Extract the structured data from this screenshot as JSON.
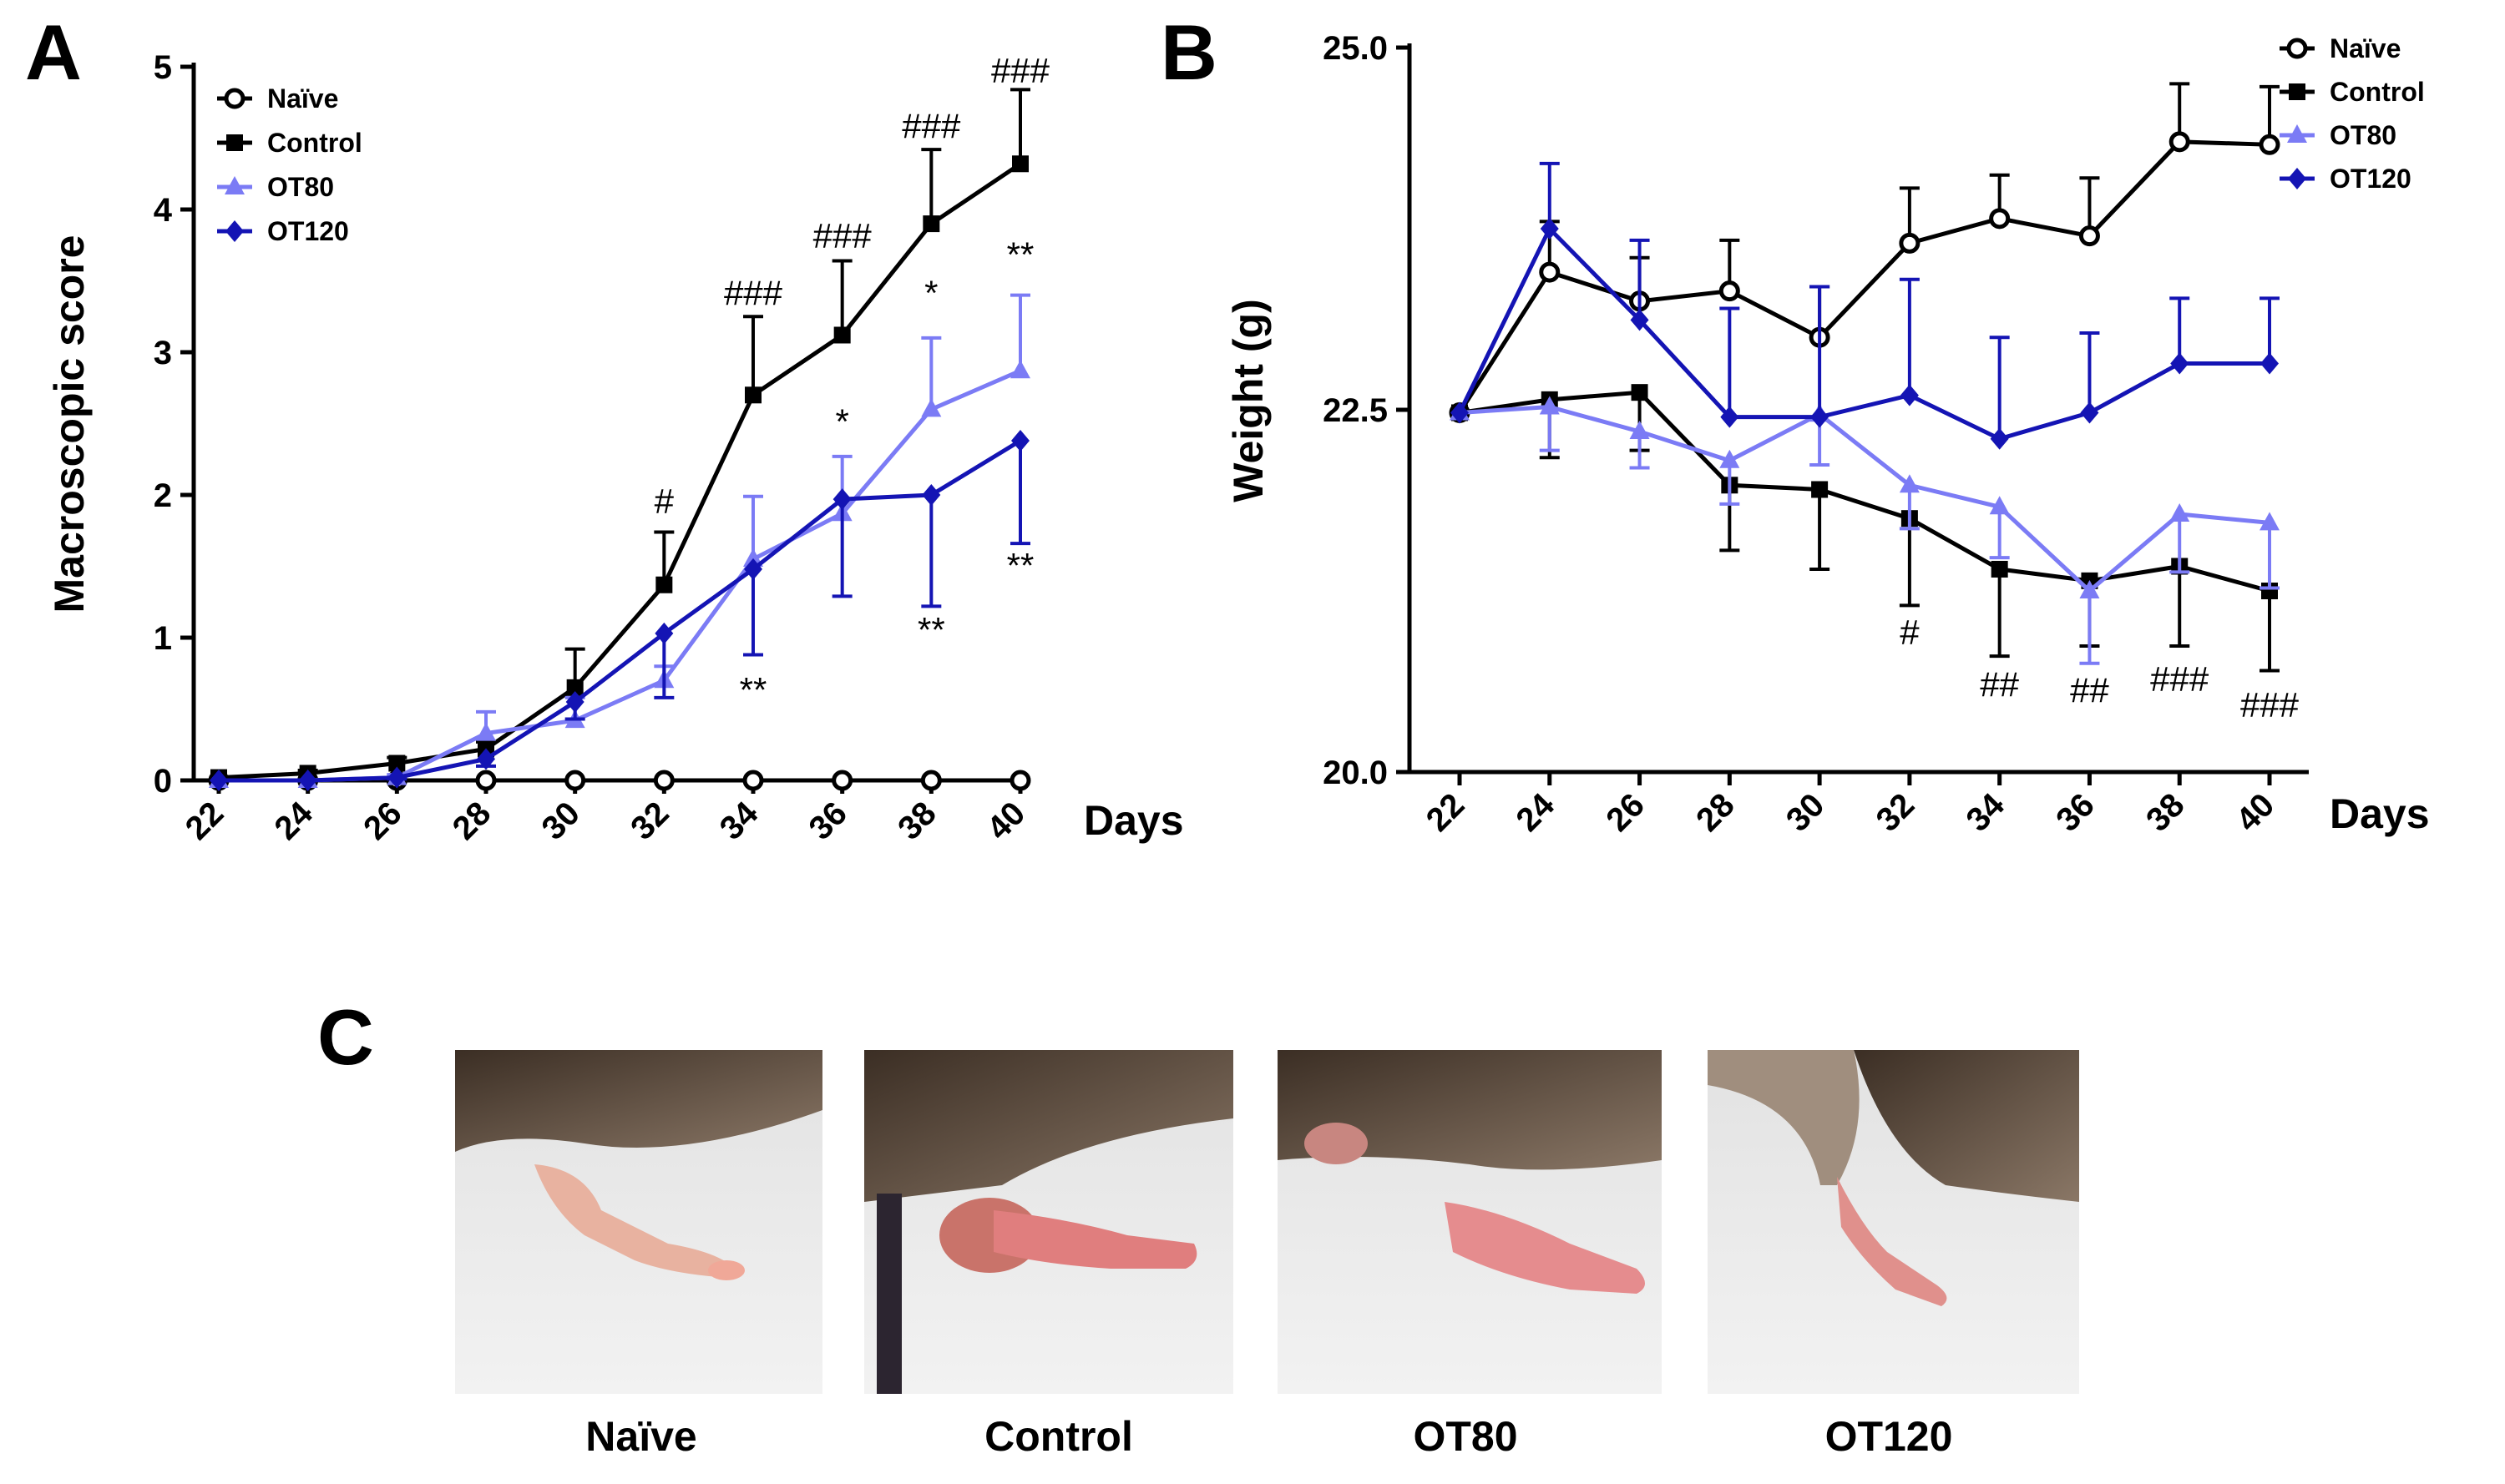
{
  "panels": {
    "a": "A",
    "b": "B",
    "c": "C"
  },
  "colors": {
    "naive": "#000000",
    "control": "#000000",
    "ot80": "#7b7bf5",
    "ot120": "#1414b4"
  },
  "chart_data": [
    {
      "id": "A",
      "type": "line",
      "ylabel": "Macroscopic  score",
      "xlabel": "Days",
      "ylim": [
        0,
        5
      ],
      "yticks": [
        0,
        1,
        2,
        3,
        4,
        5
      ],
      "ytick_labels": [
        "0",
        "1",
        "2",
        "3",
        "4",
        "5"
      ],
      "x": [
        22,
        24,
        26,
        28,
        30,
        32,
        34,
        36,
        38,
        40
      ],
      "xtick_labels": [
        "22",
        "24",
        "26",
        "28",
        "30",
        "32",
        "34",
        "36",
        "38",
        "40"
      ],
      "legend": [
        "Naïve",
        "Control",
        "OT80",
        "OT120"
      ],
      "legend_position": "top-left",
      "series": [
        {
          "name": "Naïve",
          "color": "#000000",
          "marker": "circle-open",
          "values": [
            0,
            0,
            0,
            0,
            0,
            0,
            0,
            0,
            0,
            0
          ]
        },
        {
          "name": "Control",
          "color": "#000000",
          "marker": "square",
          "values": [
            0.02,
            0.05,
            0.12,
            0.22,
            0.65,
            1.37,
            2.7,
            3.12,
            3.9,
            4.32
          ],
          "err": [
            0,
            0.02,
            0.04,
            0.05,
            0.27,
            0.37,
            0.55,
            0.52,
            0.52,
            0.52
          ],
          "err_dir": "up"
        },
        {
          "name": "OT80",
          "color": "#7b7bf5",
          "marker": "triangle",
          "values": [
            0,
            0,
            0.02,
            0.33,
            0.42,
            0.7,
            1.55,
            1.87,
            2.6,
            2.87
          ],
          "err": [
            0,
            0,
            0.02,
            0.15,
            0.16,
            0.1,
            0.44,
            0.4,
            0.5,
            0.53
          ],
          "err_dir": "up"
        },
        {
          "name": "OT120",
          "color": "#1414b4",
          "marker": "diamond",
          "values": [
            0,
            0,
            0.02,
            0.15,
            0.55,
            1.03,
            1.48,
            1.97,
            2.0,
            2.38
          ],
          "err": [
            0,
            0,
            0.01,
            0.05,
            0.12,
            0.45,
            0.6,
            0.68,
            0.78,
            0.72
          ],
          "err_dir": "down"
        }
      ],
      "annotations": [
        {
          "text": "#",
          "x": 32,
          "y": 1.87
        },
        {
          "text": "###",
          "x": 34,
          "y": 3.33
        },
        {
          "text": "###",
          "x": 36,
          "y": 3.73
        },
        {
          "text": "###",
          "x": 38,
          "y": 4.5
        },
        {
          "text": "###",
          "x": 40,
          "y": 4.89
        },
        {
          "text": "*",
          "x": 36,
          "y": 2.43
        },
        {
          "text": "*",
          "x": 38,
          "y": 3.33
        },
        {
          "text": "**",
          "x": 40,
          "y": 3.6
        },
        {
          "text": "**",
          "x": 34,
          "y": 0.55
        },
        {
          "text": "**",
          "x": 38,
          "y": 0.97
        },
        {
          "text": "**",
          "x": 40,
          "y": 1.42
        }
      ]
    },
    {
      "id": "B",
      "type": "line",
      "ylabel": "Weight (g)",
      "xlabel": "Days",
      "ylim": [
        20,
        25
      ],
      "yticks": [
        20,
        22.5,
        25
      ],
      "ytick_labels": [
        "20.0",
        "22.5",
        "25.0"
      ],
      "x": [
        22,
        24,
        26,
        28,
        30,
        32,
        34,
        36,
        38,
        40
      ],
      "xtick_labels": [
        "22",
        "24",
        "26",
        "28",
        "30",
        "32",
        "34",
        "36",
        "38",
        "40"
      ],
      "legend": [
        "Naïve",
        "Control",
        "OT80",
        "OT120"
      ],
      "legend_position": "top-right",
      "series": [
        {
          "name": "Naïve",
          "color": "#000000",
          "marker": "circle-open",
          "values": [
            22.48,
            23.45,
            23.25,
            23.32,
            23.0,
            23.65,
            23.82,
            23.7,
            24.35,
            24.33
          ],
          "err": [
            0,
            0.35,
            0.3,
            0.35,
            0.35,
            0.38,
            0.3,
            0.4,
            0.4,
            0.4
          ],
          "err_dir": "up"
        },
        {
          "name": "Control",
          "color": "#000000",
          "marker": "square",
          "values": [
            22.48,
            22.57,
            22.62,
            21.98,
            21.95,
            21.75,
            21.4,
            21.32,
            21.42,
            21.25
          ],
          "err": [
            0,
            0.4,
            0.4,
            0.45,
            0.55,
            0.6,
            0.6,
            0.45,
            0.55,
            0.55
          ],
          "err_dir": "down"
        },
        {
          "name": "OT80",
          "color": "#7b7bf5",
          "marker": "triangle",
          "values": [
            22.48,
            22.52,
            22.35,
            22.15,
            22.47,
            21.98,
            21.83,
            21.25,
            21.78,
            21.72
          ],
          "err": [
            0,
            0.3,
            0.25,
            0.3,
            0.35,
            0.3,
            0.35,
            0.5,
            0.4,
            0.45
          ],
          "err_dir": "down"
        },
        {
          "name": "OT120",
          "color": "#1414b4",
          "marker": "diamond",
          "values": [
            22.48,
            23.75,
            23.12,
            22.45,
            22.45,
            22.6,
            22.3,
            22.48,
            22.82,
            22.82
          ],
          "err": [
            0,
            0.45,
            0.55,
            0.75,
            0.9,
            0.8,
            0.7,
            0.55,
            0.45,
            0.45
          ],
          "err_dir": "up"
        }
      ],
      "annotations": [
        {
          "text": "#",
          "x": 32,
          "y": 20.88
        },
        {
          "text": "##",
          "x": 34,
          "y": 20.52
        },
        {
          "text": "##",
          "x": 36,
          "y": 20.48
        },
        {
          "text": "###",
          "x": 38,
          "y": 20.56
        },
        {
          "text": "###",
          "x": 40,
          "y": 20.38
        }
      ]
    }
  ],
  "photos": [
    {
      "label": "Naïve"
    },
    {
      "label": "Control"
    },
    {
      "label": "OT80"
    },
    {
      "label": "OT120"
    }
  ]
}
